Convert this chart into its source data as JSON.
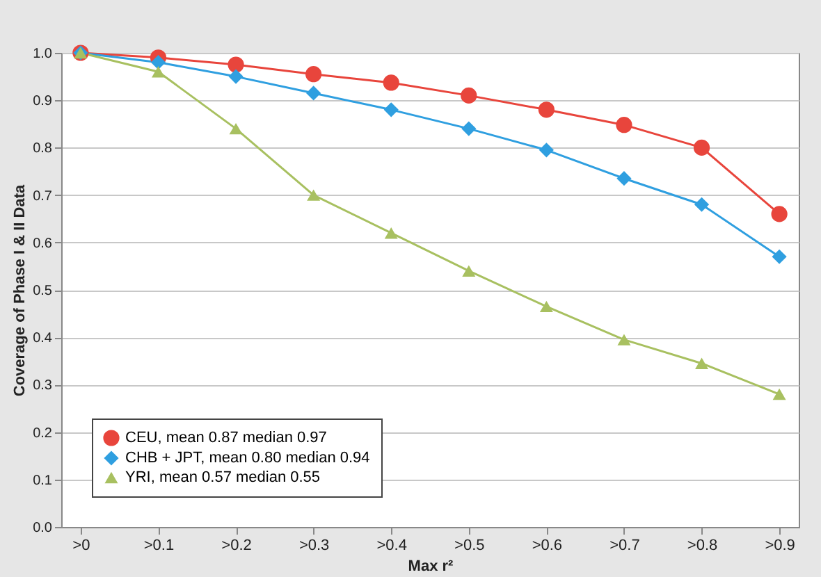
{
  "chart_data": {
    "type": "line",
    "xlabel": "Max r²",
    "ylabel": "Coverage of Phase I & II Data",
    "categories": [
      ">0",
      ">0.1",
      ">0.2",
      ">0.3",
      ">0.4",
      ">0.5",
      ">0.6",
      ">0.7",
      ">0.8",
      ">0.9"
    ],
    "series": [
      {
        "name": "CEU, mean 0.87 median 0.97",
        "color": "#e8453c",
        "marker": "circle",
        "values": [
          1.0,
          0.99,
          0.975,
          0.955,
          0.937,
          0.91,
          0.88,
          0.848,
          0.8,
          0.66
        ]
      },
      {
        "name": "CHB + JPT, mean 0.80 median 0.94",
        "color": "#2f9fe0",
        "marker": "diamond",
        "values": [
          1.0,
          0.98,
          0.95,
          0.915,
          0.88,
          0.84,
          0.795,
          0.735,
          0.68,
          0.57
        ]
      },
      {
        "name": "YRI, mean 0.57 median 0.55",
        "color": "#a8c060",
        "marker": "triangle",
        "values": [
          1.0,
          0.96,
          0.84,
          0.7,
          0.62,
          0.54,
          0.465,
          0.395,
          0.345,
          0.28
        ]
      }
    ],
    "ylim": [
      0,
      1
    ],
    "yticks": [
      {
        "value": 0,
        "label": "0.0"
      },
      0.1,
      0.2,
      0.3,
      0.4,
      0.5,
      0.6,
      0.7,
      0.8,
      0.9,
      {
        "value": 1,
        "label": "1.0"
      }
    ],
    "grid": "y",
    "legend": "bottom left",
    "line_style": "solid"
  }
}
